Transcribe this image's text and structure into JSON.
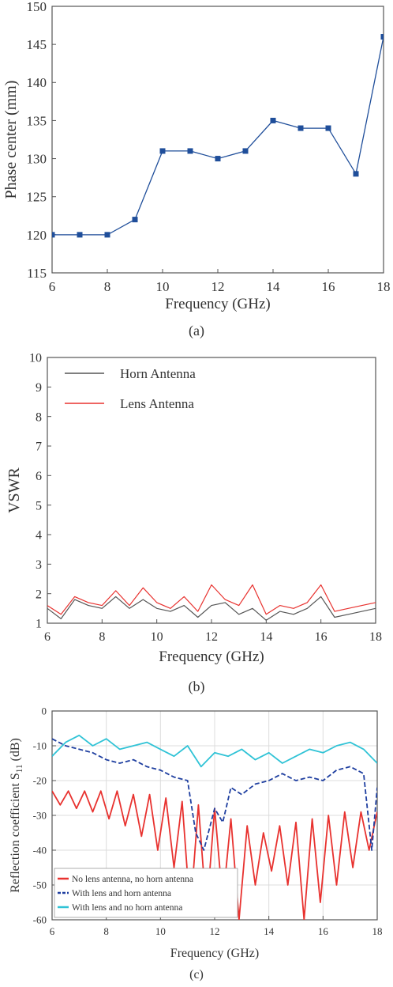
{
  "chart_data": [
    {
      "type": "line",
      "panel_label": "(a)",
      "xlabel": "Frequency (GHz)",
      "ylabel": "Phase center (mm)",
      "xlim": [
        6,
        18
      ],
      "ylim": [
        115,
        150
      ],
      "xticks": [
        "6",
        "8",
        "10",
        "12",
        "14",
        "16",
        "18"
      ],
      "yticks": [
        "115",
        "120",
        "125",
        "130",
        "135",
        "140",
        "145",
        "150"
      ],
      "grid": false,
      "marker": "square",
      "colors": {
        "series": "#1f4e9a"
      },
      "x": [
        6,
        7,
        8,
        9,
        10,
        11,
        12,
        13,
        14,
        15,
        16,
        17,
        18
      ],
      "y": [
        120,
        120,
        120,
        122,
        131,
        131,
        130,
        131,
        135,
        134,
        134,
        128,
        146
      ]
    },
    {
      "type": "line",
      "panel_label": "(b)",
      "xlabel": "Frequency (GHz)",
      "ylabel": "VSWR",
      "xlim": [
        6,
        18
      ],
      "ylim": [
        1,
        10
      ],
      "xticks": [
        "6",
        "8",
        "10",
        "12",
        "14",
        "16",
        "18"
      ],
      "yticks": [
        "1",
        "2",
        "3",
        "4",
        "5",
        "6",
        "7",
        "8",
        "9",
        "10"
      ],
      "grid": false,
      "legend_position": "top-left",
      "series": [
        {
          "name": "Horn Antenna",
          "color": "#555555",
          "x": [
            6.0,
            6.5,
            7.0,
            7.5,
            8.0,
            8.5,
            9.0,
            9.5,
            10.0,
            10.5,
            11.0,
            11.5,
            12.0,
            12.5,
            13.0,
            13.5,
            14.0,
            14.5,
            15.0,
            15.5,
            16.0,
            16.5,
            17.0,
            17.5,
            18.0
          ],
          "y": [
            1.5,
            1.15,
            1.8,
            1.6,
            1.5,
            1.9,
            1.5,
            1.8,
            1.5,
            1.4,
            1.6,
            1.2,
            1.6,
            1.7,
            1.3,
            1.5,
            1.1,
            1.4,
            1.3,
            1.5,
            1.9,
            1.2,
            1.3,
            1.4,
            1.5
          ]
        },
        {
          "name": "Lens Antenna",
          "color": "#e8322f",
          "x": [
            6.0,
            6.5,
            7.0,
            7.5,
            8.0,
            8.5,
            9.0,
            9.5,
            10.0,
            10.5,
            11.0,
            11.5,
            12.0,
            12.5,
            13.0,
            13.5,
            14.0,
            14.5,
            15.0,
            15.5,
            16.0,
            16.5,
            17.0,
            17.5,
            18.0
          ],
          "y": [
            1.6,
            1.3,
            1.9,
            1.7,
            1.6,
            2.1,
            1.6,
            2.2,
            1.7,
            1.5,
            1.9,
            1.4,
            2.3,
            1.8,
            1.6,
            2.3,
            1.3,
            1.6,
            1.5,
            1.7,
            2.3,
            1.4,
            1.5,
            1.6,
            1.7
          ]
        }
      ]
    },
    {
      "type": "line",
      "panel_label": "(c)",
      "xlabel": "Frequency (GHz)",
      "ylabel": "Reflection coefficient S",
      "ylabel_subscript": "11",
      "ylabel_suffix": " (dB)",
      "xlim": [
        6,
        18
      ],
      "ylim": [
        -60,
        0
      ],
      "xticks": [
        "6",
        "8",
        "10",
        "12",
        "14",
        "16",
        "18"
      ],
      "yticks": [
        "-60",
        "-50",
        "-40",
        "-30",
        "-20",
        "-10",
        "0"
      ],
      "grid": true,
      "legend_position": "bottom-left",
      "series": [
        {
          "name": "No lens antenna, no horn antenna",
          "color": "#e8322f",
          "style": "solid",
          "x": [
            6.0,
            6.3,
            6.6,
            6.9,
            7.2,
            7.5,
            7.8,
            8.1,
            8.4,
            8.7,
            9.0,
            9.3,
            9.6,
            9.9,
            10.2,
            10.5,
            10.8,
            11.1,
            11.4,
            11.7,
            12.0,
            12.3,
            12.6,
            12.9,
            13.2,
            13.5,
            13.8,
            14.1,
            14.4,
            14.7,
            15.0,
            15.3,
            15.6,
            15.9,
            16.2,
            16.5,
            16.8,
            17.1,
            17.4,
            17.7,
            18.0
          ],
          "y": [
            -23,
            -27,
            -23,
            -28,
            -23,
            -29,
            -23,
            -31,
            -23,
            -33,
            -24,
            -36,
            -24,
            -40,
            -25,
            -45,
            -26,
            -58,
            -27,
            -58,
            -28,
            -55,
            -31,
            -60,
            -33,
            -50,
            -35,
            -46,
            -33,
            -50,
            -32,
            -60,
            -31,
            -55,
            -30,
            -50,
            -29,
            -45,
            -29,
            -40,
            -29
          ]
        },
        {
          "name": "With lens and horn antenna",
          "color": "#1f3fa0",
          "style": "dashed",
          "x": [
            6.0,
            6.5,
            7.0,
            7.5,
            8.0,
            8.5,
            9.0,
            9.5,
            10.0,
            10.5,
            11.0,
            11.3,
            11.6,
            12.0,
            12.3,
            12.6,
            13.0,
            13.5,
            14.0,
            14.5,
            15.0,
            15.5,
            16.0,
            16.5,
            17.0,
            17.5,
            17.8,
            18.0
          ],
          "y": [
            -8,
            -10,
            -11,
            -12,
            -14,
            -15,
            -14,
            -16,
            -17,
            -19,
            -20,
            -35,
            -40,
            -28,
            -32,
            -22,
            -24,
            -21,
            -20,
            -18,
            -20,
            -19,
            -20,
            -17,
            -16,
            -18,
            -40,
            -22
          ]
        },
        {
          "name": "With lens and no horn antenna",
          "color": "#30c3d6",
          "style": "solid",
          "x": [
            6.0,
            6.5,
            7.0,
            7.5,
            8.0,
            8.5,
            9.0,
            9.5,
            10.0,
            10.5,
            11.0,
            11.5,
            12.0,
            12.5,
            13.0,
            13.5,
            14.0,
            14.5,
            15.0,
            15.5,
            16.0,
            16.5,
            17.0,
            17.5,
            18.0
          ],
          "y": [
            -13,
            -9,
            -7,
            -10,
            -8,
            -11,
            -10,
            -9,
            -11,
            -13,
            -10,
            -16,
            -12,
            -13,
            -11,
            -14,
            -12,
            -15,
            -13,
            -11,
            -12,
            -10,
            -9,
            -11,
            -15
          ]
        }
      ]
    }
  ]
}
